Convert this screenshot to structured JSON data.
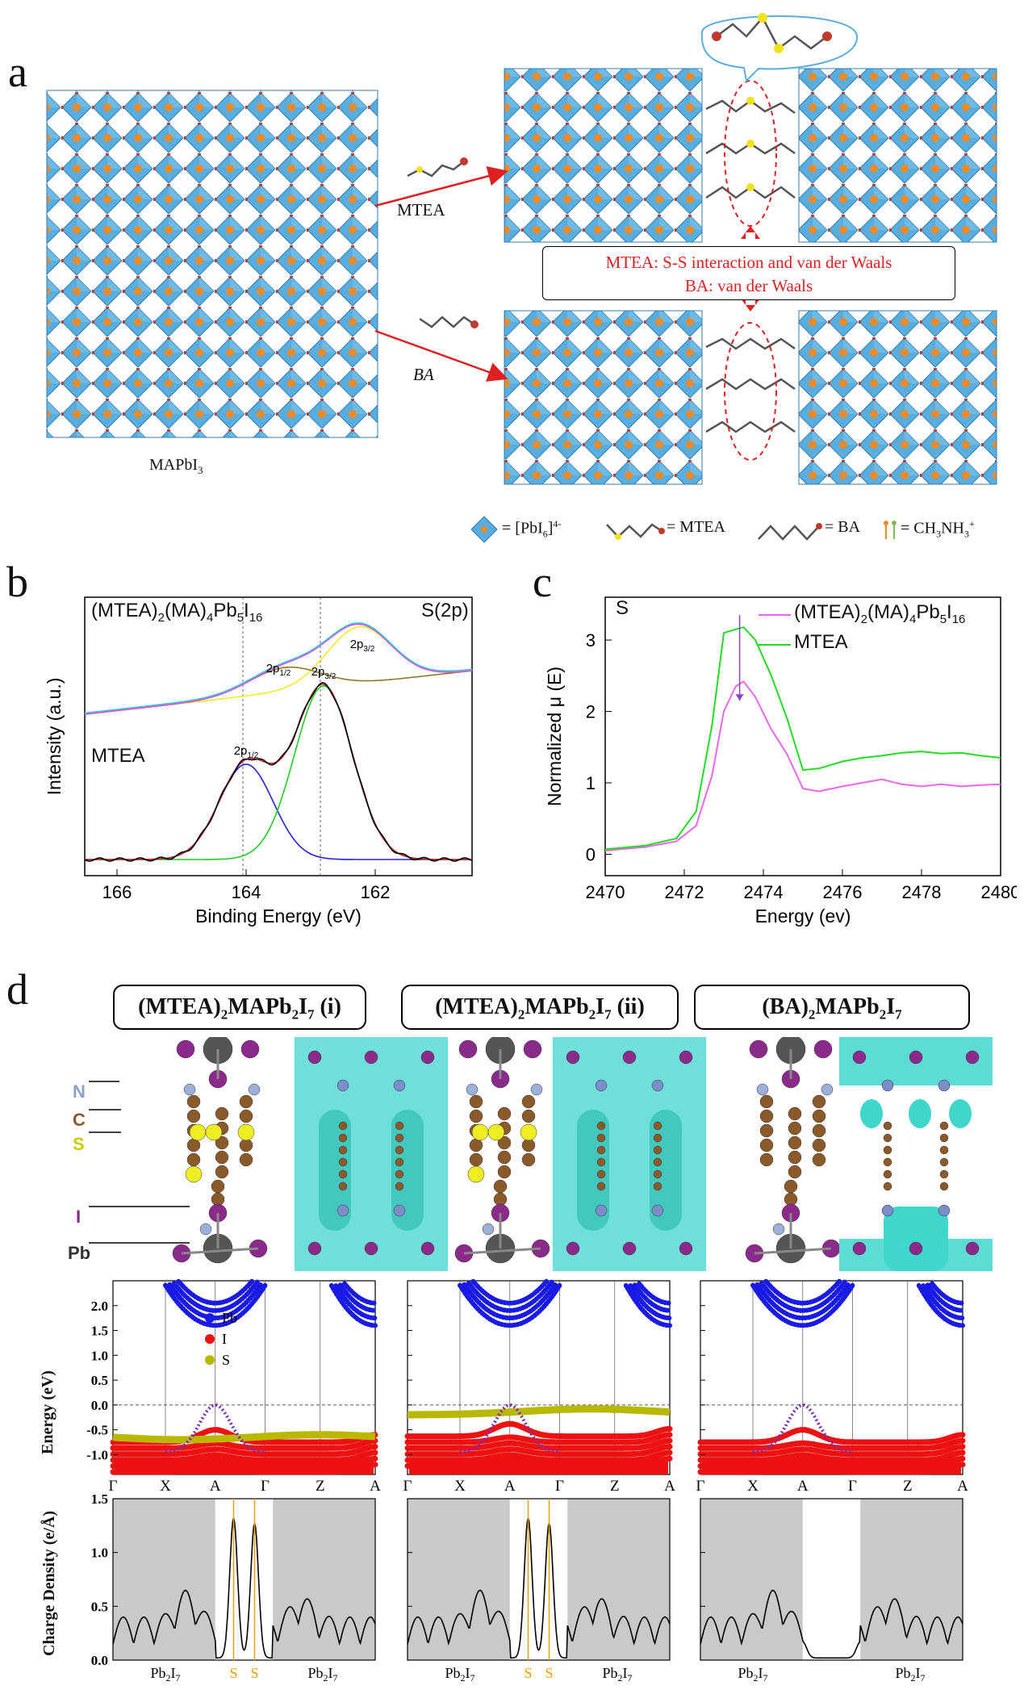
{
  "panel_a": {
    "label": "a",
    "mapbi3": "MAPbI",
    "mapbi3_sub": "3",
    "mtea_arrow": "MTEA",
    "ba_arrow": "BA",
    "interaction_line1": "MTEA: S-S interaction and van der Waals",
    "interaction_line2": "BA: van der Waals",
    "legend": {
      "pbi6": "= [PbI",
      "pbi6_sub": "6",
      "pbi6_sup": "]",
      "pbi6_sup2": "4-",
      "mtea": "= MTEA",
      "ba": "= BA",
      "ma": "= CH",
      "ma_sub": "3",
      "ma_tail": "NH",
      "ma_sub2": "3",
      "ma_sup": "+"
    },
    "colors": {
      "octahedron": "#4fa6d8",
      "arrow": "#e02020",
      "sulfur": "#f2e21a",
      "nitrogen": "#c0392b"
    }
  },
  "panel_b": {
    "label": "b",
    "chart_data": {
      "type": "line",
      "top_label": "(MTEA)",
      "top_label_sub1": "2",
      "top_label_mid": "(MA)",
      "top_label_sub2": "4",
      "top_label_mid2": "Pb",
      "top_label_sub3": "5",
      "top_label_mid3": "I",
      "top_label_sub4": "16",
      "corner_label": "S(2p)",
      "bottom_label": "MTEA",
      "xlabel": "Binding Energy (eV)",
      "ylabel": "Intensity (a.u.)",
      "xlim": [
        166.5,
        160.5
      ],
      "xticks": [
        "166",
        "164",
        "162"
      ],
      "xtick_values": [
        166,
        164,
        162
      ],
      "peak_labels": [
        {
          "text": "2p",
          "sub": "3/2",
          "x": 162.2,
          "group": "top"
        },
        {
          "text": "2p",
          "sub": "1/2",
          "x": 163.5,
          "group": "top"
        },
        {
          "text": "2p",
          "sub": "3/2",
          "x": 162.8,
          "group": "bottom"
        },
        {
          "text": "2p",
          "sub": "1/2",
          "x": 164.0,
          "group": "bottom"
        }
      ],
      "dashed_lines": [
        164.05,
        162.85
      ]
    }
  },
  "panel_c": {
    "label": "c",
    "chart_data": {
      "type": "line",
      "element": "S",
      "xlabel": "Energy (ev)",
      "ylabel": "Normalized μ (E)",
      "xlim": [
        2470,
        2480
      ],
      "ylim": [
        -0.3,
        3.6
      ],
      "xticks": [
        "2470",
        "2472",
        "2474",
        "2476",
        "2478",
        "2480"
      ],
      "xtick_values": [
        2470,
        2472,
        2474,
        2476,
        2478,
        2480
      ],
      "yticks": [
        "0",
        "1",
        "2",
        "3"
      ],
      "ytick_values": [
        0,
        1,
        2,
        3
      ],
      "series": [
        {
          "name": "(MTEA)",
          "name_sub1": "2",
          "name_mid": "(MA)",
          "name_sub2": "4",
          "name_mid2": "Pb",
          "name_sub3": "5",
          "name_mid3": "I",
          "name_sub4": "16",
          "color": "#ee66ee",
          "x": [
            2470,
            2471,
            2471.8,
            2472.3,
            2472.7,
            2473.0,
            2473.3,
            2473.5,
            2473.8,
            2474.2,
            2474.6,
            2475.0,
            2475.4,
            2476,
            2476.5,
            2477,
            2477.5,
            2478,
            2478.5,
            2479,
            2479.5,
            2480
          ],
          "y": [
            0.05,
            0.1,
            0.18,
            0.4,
            1.1,
            2.0,
            2.35,
            2.42,
            2.2,
            1.75,
            1.4,
            0.92,
            0.88,
            0.95,
            1.0,
            1.05,
            0.98,
            0.95,
            0.98,
            0.95,
            0.97,
            0.98
          ]
        },
        {
          "name": "MTEA",
          "color": "#22dd22",
          "x": [
            2470,
            2471,
            2471.8,
            2472.3,
            2472.7,
            2473.0,
            2473.3,
            2473.5,
            2473.8,
            2474.2,
            2474.6,
            2475.0,
            2475.4,
            2476,
            2476.5,
            2477,
            2477.5,
            2478,
            2478.5,
            2479,
            2479.5,
            2480
          ],
          "y": [
            0.07,
            0.12,
            0.22,
            0.6,
            1.8,
            3.1,
            3.15,
            3.18,
            3.0,
            2.5,
            1.9,
            1.18,
            1.2,
            1.3,
            1.35,
            1.38,
            1.42,
            1.44,
            1.41,
            1.42,
            1.38,
            1.35
          ]
        }
      ]
    }
  },
  "panel_d": {
    "label": "d",
    "titles": [
      {
        "pre": "(MTEA)",
        "s1": "2",
        "mid": "MAPb",
        "s2": "2",
        "mid2": "I",
        "s3": "7",
        "post": " (i)"
      },
      {
        "pre": "(MTEA)",
        "s1": "2",
        "mid": "MAPb",
        "s2": "2",
        "mid2": "I",
        "s3": "7",
        "post": " (ii)"
      },
      {
        "pre": "(BA)",
        "s1": "2",
        "mid": "MAPb",
        "s2": "2",
        "mid2": "I",
        "s3": "7",
        "post": ""
      }
    ],
    "atom_labels": [
      {
        "text": "N",
        "color": "#8e9fcc"
      },
      {
        "text": "C",
        "color": "#8a5a2b"
      },
      {
        "text": "S",
        "color": "#cccc00"
      },
      {
        "text": "I",
        "color": "#8b2a8b"
      },
      {
        "text": "Pb",
        "color": "#333333"
      }
    ],
    "band_chart": {
      "type": "scatter",
      "ylabel": "Energy (eV)",
      "ylim": [
        -1.4,
        2.5
      ],
      "yticks": [
        "2.0",
        "1.5",
        "1.0",
        "0.5",
        "0.0",
        "-0.5",
        "-1.0"
      ],
      "ytick_values": [
        2.0,
        1.5,
        1.0,
        0.5,
        0.0,
        -0.5,
        -1.0
      ],
      "kpoints": [
        "Γ",
        "X",
        "A",
        "Γ",
        "Z",
        "A"
      ],
      "legend": [
        {
          "name": "Pb",
          "color": "#1a1ae6"
        },
        {
          "name": "I",
          "color": "#ee1111"
        },
        {
          "name": "S",
          "color": "#b8b800"
        }
      ]
    },
    "charge_chart": {
      "type": "line",
      "ylabel": "Charge Density (e/Å)",
      "ylim": [
        0,
        1.5
      ],
      "yticks": [
        "1.5",
        "1.0",
        "0.5",
        "0.0"
      ],
      "ytick_values": [
        1.5,
        1.0,
        0.5,
        0.0
      ],
      "region_label": "Pb",
      "region_sub1": "2",
      "region_mid": "I",
      "region_sub2": "7",
      "s_label": "S"
    }
  }
}
